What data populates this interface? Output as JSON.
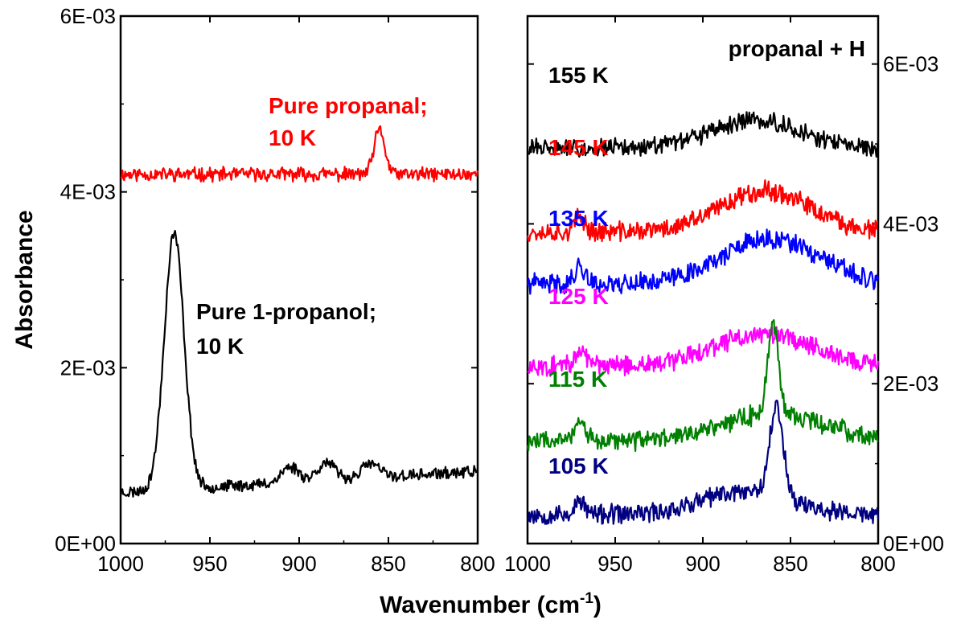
{
  "chart_data": {
    "type": "line",
    "xlabel": "Wavenumber (cm",
    "xlabel_sup": "-1",
    "xlabel_close": ")",
    "ylabel": "Absorbance",
    "panels": [
      {
        "name": "left",
        "xlim": [
          1000,
          800
        ],
        "ylim": [
          0,
          0.006
        ],
        "xticks": [
          "1000",
          "950",
          "900",
          "850",
          "800"
        ],
        "xtick_values": [
          1000,
          950,
          900,
          850,
          800
        ],
        "yticks": [
          "0E+00",
          "2E-03",
          "4E-03",
          "6E-03"
        ],
        "ytick_values": [
          0,
          0.002,
          0.004,
          0.006
        ],
        "yaxis_side": "left",
        "series": [
          {
            "name": "Pure propanal; 10 K",
            "color": "#ff0000",
            "label_lines": [
              "Pure propanal;",
              "10 K"
            ],
            "baseline": 0.0042,
            "noise": 7e-05,
            "seed": 11,
            "peaks": [
              {
                "center": 855,
                "amplitude": 0.0005,
                "width": 3
              }
            ]
          },
          {
            "name": "Pure 1-propanol; 10 K",
            "color": "#000000",
            "label_lines": [
              "Pure 1-propanol;",
              "10 K"
            ],
            "baseline": 0.00058,
            "slope_end": 0.00082,
            "noise": 6e-05,
            "seed": 23,
            "peaks": [
              {
                "center": 970,
                "amplitude": 0.00292,
                "width": 5.5
              },
              {
                "center": 905,
                "amplitude": 0.00018,
                "width": 5
              },
              {
                "center": 885,
                "amplitude": 0.0002,
                "width": 5
              },
              {
                "center": 860,
                "amplitude": 0.00016,
                "width": 5
              }
            ]
          }
        ]
      },
      {
        "name": "right",
        "title": "propanal + H",
        "xlim": [
          1000,
          800
        ],
        "ylim": [
          0,
          0.0066
        ],
        "xticks": [
          "1000",
          "950",
          "900",
          "850",
          "800"
        ],
        "xtick_values": [
          1000,
          950,
          900,
          850,
          800
        ],
        "yticks": [
          "0E+00",
          "2E-03",
          "4E-03",
          "6E-03"
        ],
        "ytick_values": [
          0,
          0.002,
          0.004,
          0.006
        ],
        "yaxis_side": "right",
        "series": [
          {
            "name": "155 K",
            "color": "#000000",
            "label": "155 K",
            "baseline": 0.00495,
            "noise": 0.0001,
            "seed": 31,
            "peaks": [
              {
                "center": 870,
                "amplitude": 0.00035,
                "width": 25
              }
            ]
          },
          {
            "name": "145 K",
            "color": "#ff0000",
            "label": "145 K",
            "baseline": 0.0039,
            "noise": 0.00011,
            "seed": 37,
            "peaks": [
              {
                "center": 865,
                "amplitude": 0.00052,
                "width": 25
              },
              {
                "center": 970,
                "amplitude": 0.00018,
                "width": 3
              }
            ]
          },
          {
            "name": "135 K",
            "color": "#0000ff",
            "label": "135 K",
            "baseline": 0.00325,
            "noise": 0.00011,
            "seed": 41,
            "peaks": [
              {
                "center": 862,
                "amplitude": 0.00055,
                "width": 28
              },
              {
                "center": 970,
                "amplitude": 0.00022,
                "width": 3
              }
            ]
          },
          {
            "name": "125 K",
            "color": "#ff00ff",
            "label": "125 K",
            "baseline": 0.00222,
            "noise": 0.00011,
            "seed": 43,
            "peaks": [
              {
                "center": 865,
                "amplitude": 0.0004,
                "width": 28
              },
              {
                "center": 970,
                "amplitude": 0.0002,
                "width": 3
              }
            ]
          },
          {
            "name": "115 K",
            "color": "#008000",
            "label": "115 K",
            "baseline": 0.00128,
            "noise": 0.00011,
            "seed": 47,
            "peaks": [
              {
                "center": 860,
                "amplitude": 0.0011,
                "width": 3
              },
              {
                "center": 860,
                "amplitude": 0.00035,
                "width": 30
              },
              {
                "center": 970,
                "amplitude": 0.0003,
                "width": 3
              }
            ]
          },
          {
            "name": "105 K",
            "color": "#000080",
            "label": "105 K",
            "baseline": 0.00036,
            "noise": 0.00011,
            "seed": 53,
            "peaks": [
              {
                "center": 858,
                "amplitude": 0.0011,
                "width": 4
              },
              {
                "center": 875,
                "amplitude": 0.0003,
                "width": 25
              },
              {
                "center": 970,
                "amplitude": 0.00016,
                "width": 3
              }
            ]
          }
        ]
      }
    ]
  }
}
